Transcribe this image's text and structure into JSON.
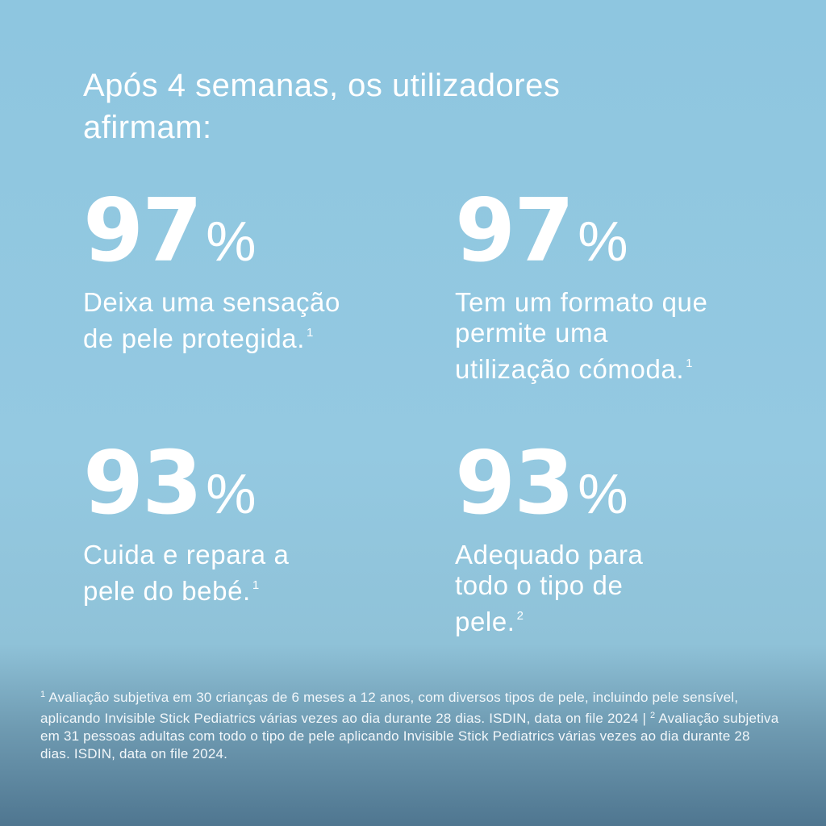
{
  "headline": "Após 4 semanas, os utilizadores afirmam:",
  "stats": [
    {
      "value": "97",
      "unit": "%",
      "label": "Deixa uma sensação de pele protegida.",
      "note": "1"
    },
    {
      "value": "97",
      "unit": "%",
      "label": "Tem um formato que permite uma utilização cómoda.",
      "note": "1"
    },
    {
      "value": "93",
      "unit": "%",
      "label": "Cuida e repara a pele do bebé.",
      "note": "1"
    },
    {
      "value": "93",
      "unit": "%",
      "label": "Adequado para todo o tipo de pele.",
      "note": "2"
    }
  ],
  "footnote": {
    "mark1": "1",
    "text1": "Avaliação subjetiva em 30 crianças de 6 meses a 12 anos, com diversos tipos de pele, incluindo pele sensível, aplicando Invisible Stick Pediatrics várias vezes ao dia durante 28 dias. ISDIN, data on file 2024 |",
    "mark2": "2",
    "text2": "Avaliação subjetiva em 31 pessoas adultas com todo o tipo de pele aplicando Invisible Stick Pediatrics várias vezes ao dia durante 28 dias. ISDIN, data on file 2024."
  },
  "colors": {
    "text": "#ffffff",
    "background_top": "#8ec6e0",
    "background_bottom": "#4f7690"
  }
}
